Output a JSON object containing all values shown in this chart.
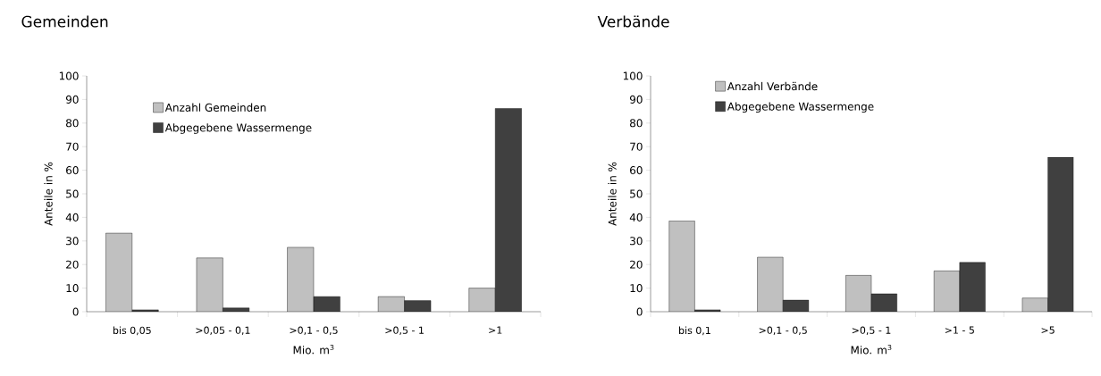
{
  "chart_data": [
    {
      "type": "bar",
      "title": "Gemeinden",
      "xlabel": "Mio. m$^{3}$",
      "ylabel": "Anteile in %",
      "categories": [
        "bis 0,05",
        ">0,05 - 0,1",
        ">0,1 - 0,5",
        ">0,5 - 1",
        ">1"
      ],
      "series": [
        {
          "name": "Anzahl Gemeinden",
          "color": "#c0c0c0",
          "values": [
            33.3,
            22.8,
            27.3,
            6.4,
            10
          ]
        },
        {
          "name": "Abgegebene Wassermenge",
          "color": "#404040",
          "values": [
            0.8,
            1.6,
            6.4,
            4.7,
            86.2
          ]
        }
      ],
      "ylim": [
        0,
        100
      ],
      "yticks": [
        0,
        10,
        20,
        30,
        40,
        50,
        60,
        70,
        80,
        90,
        100
      ],
      "grid": false,
      "legend": "top left"
    },
    {
      "type": "bar",
      "title": "Verbände",
      "xlabel": "Mio. m$^{3}$",
      "ylabel": "Anteile in %",
      "categories": [
        "bis 0,1",
        ">0,1 - 0,5",
        ">0,5 - 1",
        ">1 - 5",
        ">5"
      ],
      "series": [
        {
          "name": "Anzahl Verbände",
          "color": "#c0c0c0",
          "values": [
            38.5,
            23.1,
            15.4,
            17.3,
            5.8
          ]
        },
        {
          "name": "Abgegebene Wassermenge",
          "color": "#404040",
          "values": [
            0.8,
            4.9,
            7.6,
            20.9,
            65.5
          ]
        }
      ],
      "ylim": [
        0,
        100
      ],
      "yticks": [
        0,
        10,
        20,
        30,
        40,
        50,
        60,
        70,
        80,
        90,
        100
      ],
      "grid": false,
      "legend": "top left"
    }
  ]
}
